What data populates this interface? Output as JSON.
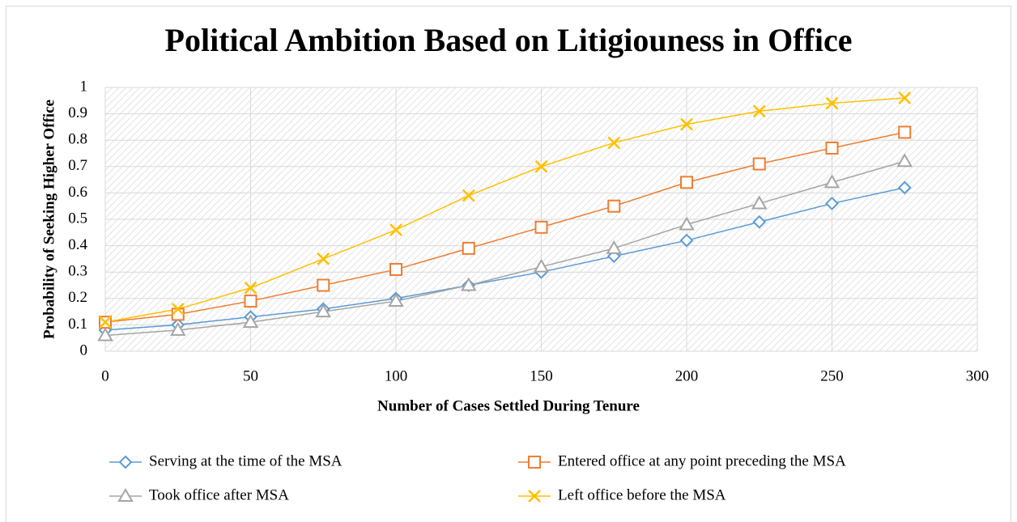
{
  "chart_data": {
    "type": "line",
    "title": "Political Ambition Based on Litigiouness in Office",
    "x_label": "Number of Cases Settled During Tenure",
    "y_label": "Probability of Seeking Higher Office",
    "x": [
      0,
      25,
      50,
      75,
      100,
      125,
      150,
      175,
      200,
      225,
      250,
      275
    ],
    "series": [
      {
        "name": "Serving at the time of the MSA",
        "color": "#5b9bd5",
        "marker": "diamond",
        "values": [
          0.08,
          0.1,
          0.13,
          0.16,
          0.2,
          0.25,
          0.3,
          0.36,
          0.42,
          0.49,
          0.56,
          0.62
        ]
      },
      {
        "name": "Entered office at any point preceding the MSA",
        "color": "#ed7d31",
        "marker": "square",
        "values": [
          0.11,
          0.14,
          0.19,
          0.25,
          0.31,
          0.39,
          0.47,
          0.55,
          0.64,
          0.71,
          0.77,
          0.83
        ]
      },
      {
        "name": "Took office after MSA",
        "color": "#a5a5a5",
        "marker": "triangle",
        "values": [
          0.06,
          0.08,
          0.11,
          0.15,
          0.19,
          0.25,
          0.32,
          0.39,
          0.48,
          0.56,
          0.64,
          0.72
        ]
      },
      {
        "name": "Left office before the MSA",
        "color": "#ffc000",
        "marker": "x",
        "values": [
          0.11,
          0.16,
          0.24,
          0.35,
          0.46,
          0.59,
          0.7,
          0.79,
          0.86,
          0.91,
          0.94,
          0.96
        ]
      }
    ],
    "xlim": [
      0,
      300
    ],
    "xticks": [
      0,
      50,
      100,
      150,
      200,
      250,
      300
    ],
    "ylim": [
      0,
      1
    ],
    "yticks": [
      0,
      0.1,
      0.2,
      0.3,
      0.4,
      0.5,
      0.6,
      0.7,
      0.8,
      0.9,
      1
    ],
    "grid": true,
    "legend": "bottom"
  }
}
